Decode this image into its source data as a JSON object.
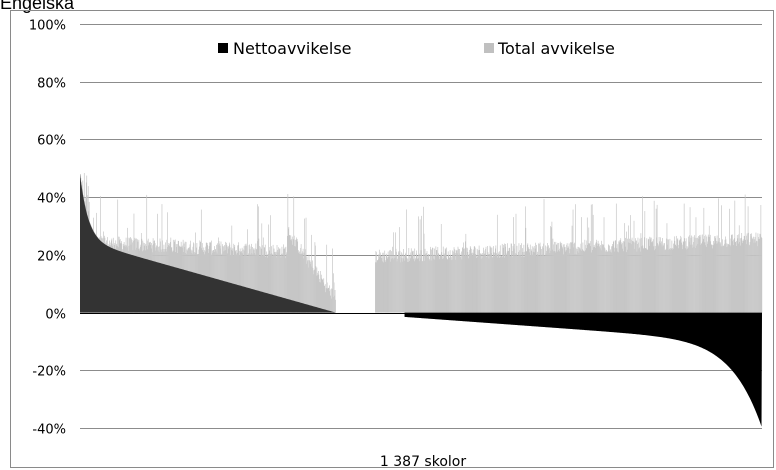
{
  "page_title": "Engelska",
  "chart_data": {
    "type": "bar",
    "title": "",
    "xlabel": "1 387 skolor",
    "ylabel": "",
    "ylim": [
      -40,
      100
    ],
    "yticks": [
      "100%",
      "80%",
      "60%",
      "40%",
      "20%",
      "0%",
      "-20%",
      "-40%"
    ],
    "ytick_values": [
      100,
      80,
      60,
      40,
      20,
      0,
      -20,
      -40
    ],
    "grid": true,
    "legend_position": "top",
    "n_schools": 1387,
    "series": [
      {
        "name": "Nettoavvikelse",
        "color": "#000000",
        "description_points": {
          "positive_segment": {
            "x_range": [
              0,
              520
            ],
            "start_value": 48,
            "end_value": 0
          },
          "zero_segment": {
            "x_range": [
              520,
              660
            ]
          },
          "negative_segment": {
            "x_range": [
              660,
              1387
            ],
            "start_value": 0,
            "end_value": -40
          }
        }
      },
      {
        "name": "Total avvikelse",
        "color": "#c0c0c0",
        "typical_range": [
          10,
          40
        ],
        "max_value": 52
      }
    ]
  }
}
